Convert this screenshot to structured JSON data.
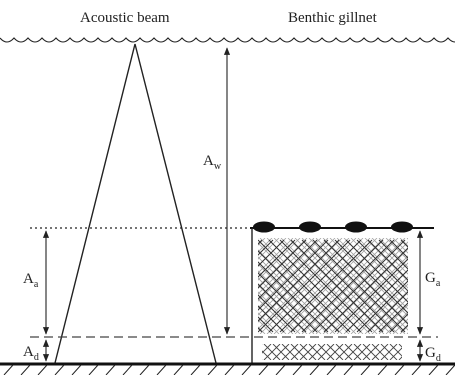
{
  "labels": {
    "acoustic_beam": "Acoustic beam",
    "benthic_gillnet": "Benthic gillnet"
  },
  "symbols": {
    "aw": {
      "main": "A",
      "sub": "w"
    },
    "aa": {
      "main": "A",
      "sub": "a"
    },
    "ad": {
      "main": "A",
      "sub": "d"
    },
    "ga": {
      "main": "G",
      "sub": "a"
    },
    "gd": {
      "main": "G",
      "sub": "d"
    }
  },
  "colors": {
    "ink": "#222222",
    "mesh": "#555555",
    "mesh_light": "#9a9a9a",
    "seabed": "#111111"
  },
  "icons": {
    "float": "ellipse-float-icon",
    "water_surface": "wave-line",
    "seabed": "hatched-ground"
  }
}
